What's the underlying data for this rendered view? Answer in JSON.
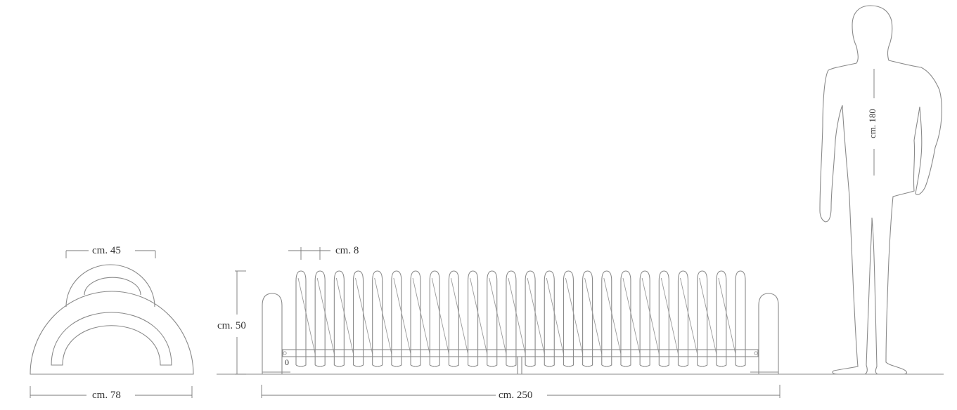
{
  "dimensions": {
    "side_top_width": "cm. 45",
    "side_base_width": "cm. 78",
    "spacing": "cm. 8",
    "height": "cm. 50",
    "total_length": "cm. 250",
    "person_height": "cm. 180",
    "zero_mark": "0"
  },
  "rack": {
    "loop_count": 24
  },
  "colors": {
    "line": "#8a8a8a",
    "text": "#333333"
  }
}
